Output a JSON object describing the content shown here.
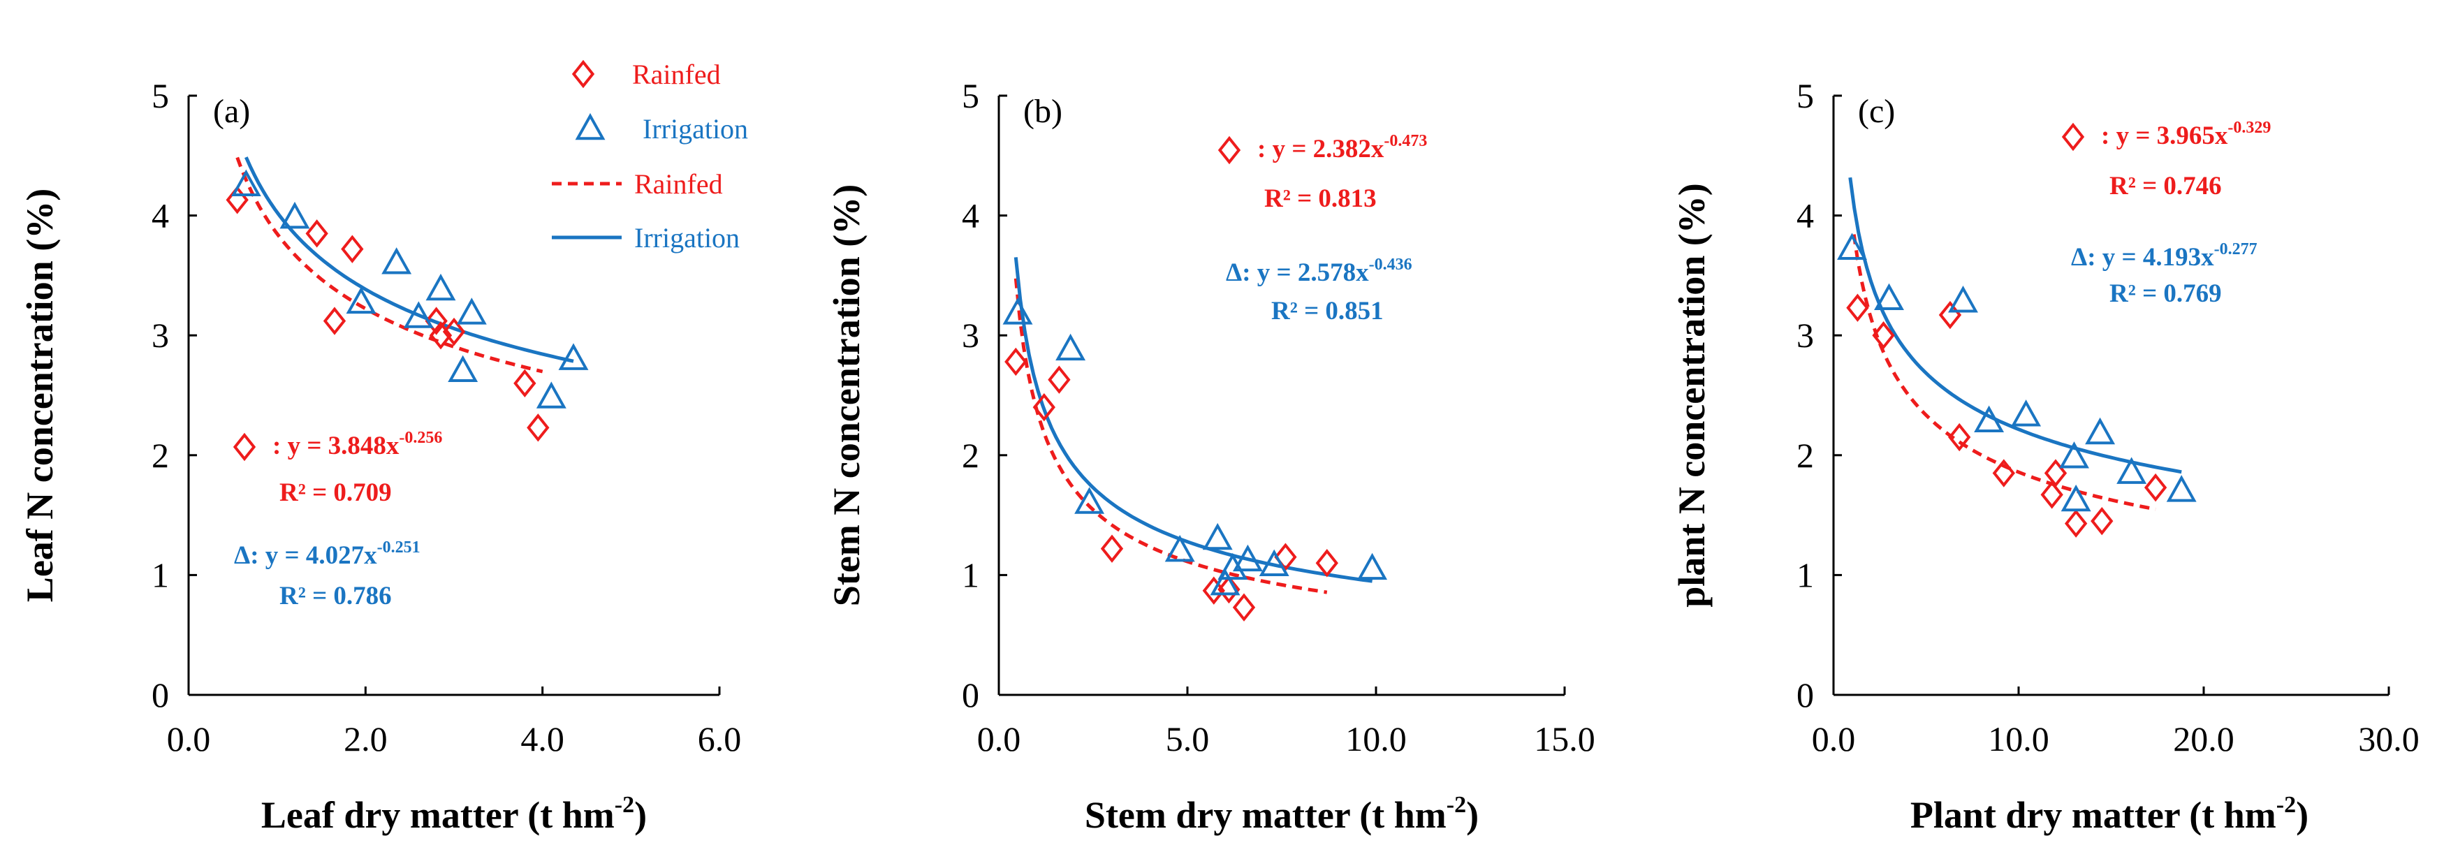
{
  "colors": {
    "rainfed": "#ee1c1c",
    "irrigation": "#1a75c2",
    "axis": "#000000"
  },
  "legend": {
    "rainfed_points": "Rainfed",
    "irrigation_points": "Irrigation",
    "rainfed_fit": "Rainfed",
    "irrigation_fit": "Irrigation"
  },
  "chart_data": [
    {
      "type": "scatter",
      "panel_label": "(a)",
      "xlabel": "Leaf dry matter (t hm⁻²)",
      "ylabel": "Leaf N concentration (%)",
      "xlim": [
        0,
        6
      ],
      "ylim": [
        0,
        5
      ],
      "xticks": [
        "0.0",
        "2.0",
        "4.0",
        "6.0"
      ],
      "yticks": [
        "0",
        "1",
        "2",
        "3",
        "4",
        "5"
      ],
      "series": [
        {
          "name": "Rainfed",
          "marker": "diamond",
          "x": [
            0.55,
            1.45,
            1.65,
            1.85,
            2.8,
            2.85,
            3.0,
            3.8,
            3.95
          ],
          "y": [
            4.13,
            3.85,
            3.12,
            3.72,
            3.12,
            3.0,
            3.03,
            2.6,
            2.23
          ]
        },
        {
          "name": "Irrigation",
          "marker": "triangle",
          "x": [
            0.65,
            1.2,
            1.95,
            2.35,
            2.6,
            2.85,
            3.1,
            3.2,
            4.1,
            4.35
          ],
          "y": [
            4.25,
            3.98,
            3.27,
            3.6,
            3.15,
            3.38,
            2.7,
            3.18,
            2.48,
            2.8
          ]
        }
      ],
      "fits": [
        {
          "name": "Rainfed",
          "a": 3.848,
          "b": -0.256,
          "x_range": [
            0.55,
            4.0
          ]
        },
        {
          "name": "Irrigation",
          "a": 4.027,
          "b": -0.251,
          "x_range": [
            0.65,
            4.35
          ]
        }
      ],
      "annotations": {
        "rainfed_eq": ": y = 3.848x",
        "rainfed_exp": "-0.256",
        "rainfed_r2": "R² = 0.709",
        "irrigation_eq": "Δ: y = 4.027x",
        "irrigation_exp": "-0.251",
        "irrigation_r2": "R² = 0.786"
      }
    },
    {
      "type": "scatter",
      "panel_label": "(b)",
      "xlabel": "Stem dry matter (t hm⁻²)",
      "ylabel": "Stem N concentration (%)",
      "xlim": [
        0,
        15
      ],
      "ylim": [
        0,
        5
      ],
      "xticks": [
        "0.0",
        "5.0",
        "10.0",
        "15.0"
      ],
      "yticks": [
        "0",
        "1",
        "2",
        "3",
        "4",
        "5"
      ],
      "series": [
        {
          "name": "Rainfed",
          "marker": "diamond",
          "x": [
            0.45,
            1.2,
            1.6,
            3.0,
            5.7,
            6.1,
            6.5,
            7.6,
            8.7
          ],
          "y": [
            2.78,
            2.4,
            2.63,
            1.22,
            0.87,
            0.88,
            0.73,
            1.15,
            1.1
          ]
        },
        {
          "name": "Irrigation",
          "marker": "triangle",
          "x": [
            0.5,
            1.9,
            2.4,
            4.8,
            5.8,
            6.0,
            6.2,
            6.6,
            7.3,
            9.9
          ],
          "y": [
            3.18,
            2.88,
            1.6,
            1.2,
            1.3,
            0.92,
            1.05,
            1.12,
            1.08,
            1.05
          ]
        }
      ],
      "fits": [
        {
          "name": "Rainfed",
          "a": 2.382,
          "b": -0.473,
          "x_range": [
            0.45,
            8.7
          ]
        },
        {
          "name": "Irrigation",
          "a": 2.578,
          "b": -0.436,
          "x_range": [
            0.45,
            9.9
          ]
        }
      ],
      "annotations": {
        "rainfed_eq": ": y = 2.382x",
        "rainfed_exp": "-0.473",
        "rainfed_r2": "R² = 0.813",
        "irrigation_eq": "Δ: y = 2.578x",
        "irrigation_exp": "-0.436",
        "irrigation_r2": "R² = 0.851"
      }
    },
    {
      "type": "scatter",
      "panel_label": "(c)",
      "xlabel": "Plant dry matter (t hm⁻²)",
      "ylabel": "plant N concentration (%)",
      "xlim": [
        0,
        30
      ],
      "ylim": [
        0,
        5
      ],
      "xticks": [
        "0.0",
        "10.0",
        "20.0",
        "30.0"
      ],
      "yticks": [
        "0",
        "1",
        "2",
        "3",
        "4",
        "5"
      ],
      "series": [
        {
          "name": "Rainfed",
          "marker": "diamond",
          "x": [
            1.3,
            2.7,
            6.3,
            6.8,
            9.2,
            11.8,
            12.0,
            13.1,
            14.5,
            17.4
          ],
          "y": [
            3.23,
            3.0,
            3.17,
            2.15,
            1.85,
            1.67,
            1.85,
            1.43,
            1.45,
            1.73
          ]
        },
        {
          "name": "Irrigation",
          "marker": "triangle",
          "x": [
            1.0,
            3.0,
            7.0,
            8.4,
            10.4,
            13.0,
            13.1,
            14.4,
            16.1,
            18.8
          ],
          "y": [
            3.72,
            3.3,
            3.28,
            2.28,
            2.33,
            1.98,
            1.62,
            2.18,
            1.85,
            1.7
          ]
        }
      ],
      "fits": [
        {
          "name": "Rainfed",
          "a": 3.965,
          "b": -0.329,
          "x_range": [
            1.1,
            17.4
          ]
        },
        {
          "name": "Irrigation",
          "a": 4.193,
          "b": -0.277,
          "x_range": [
            0.9,
            18.8
          ]
        }
      ],
      "annotations": {
        "rainfed_eq": ": y = 3.965x",
        "rainfed_exp": "-0.329",
        "rainfed_r2": "R² = 0.746",
        "irrigation_eq": "Δ: y = 4.193x",
        "irrigation_exp": "-0.277",
        "irrigation_r2": "R² = 0.769"
      }
    }
  ]
}
